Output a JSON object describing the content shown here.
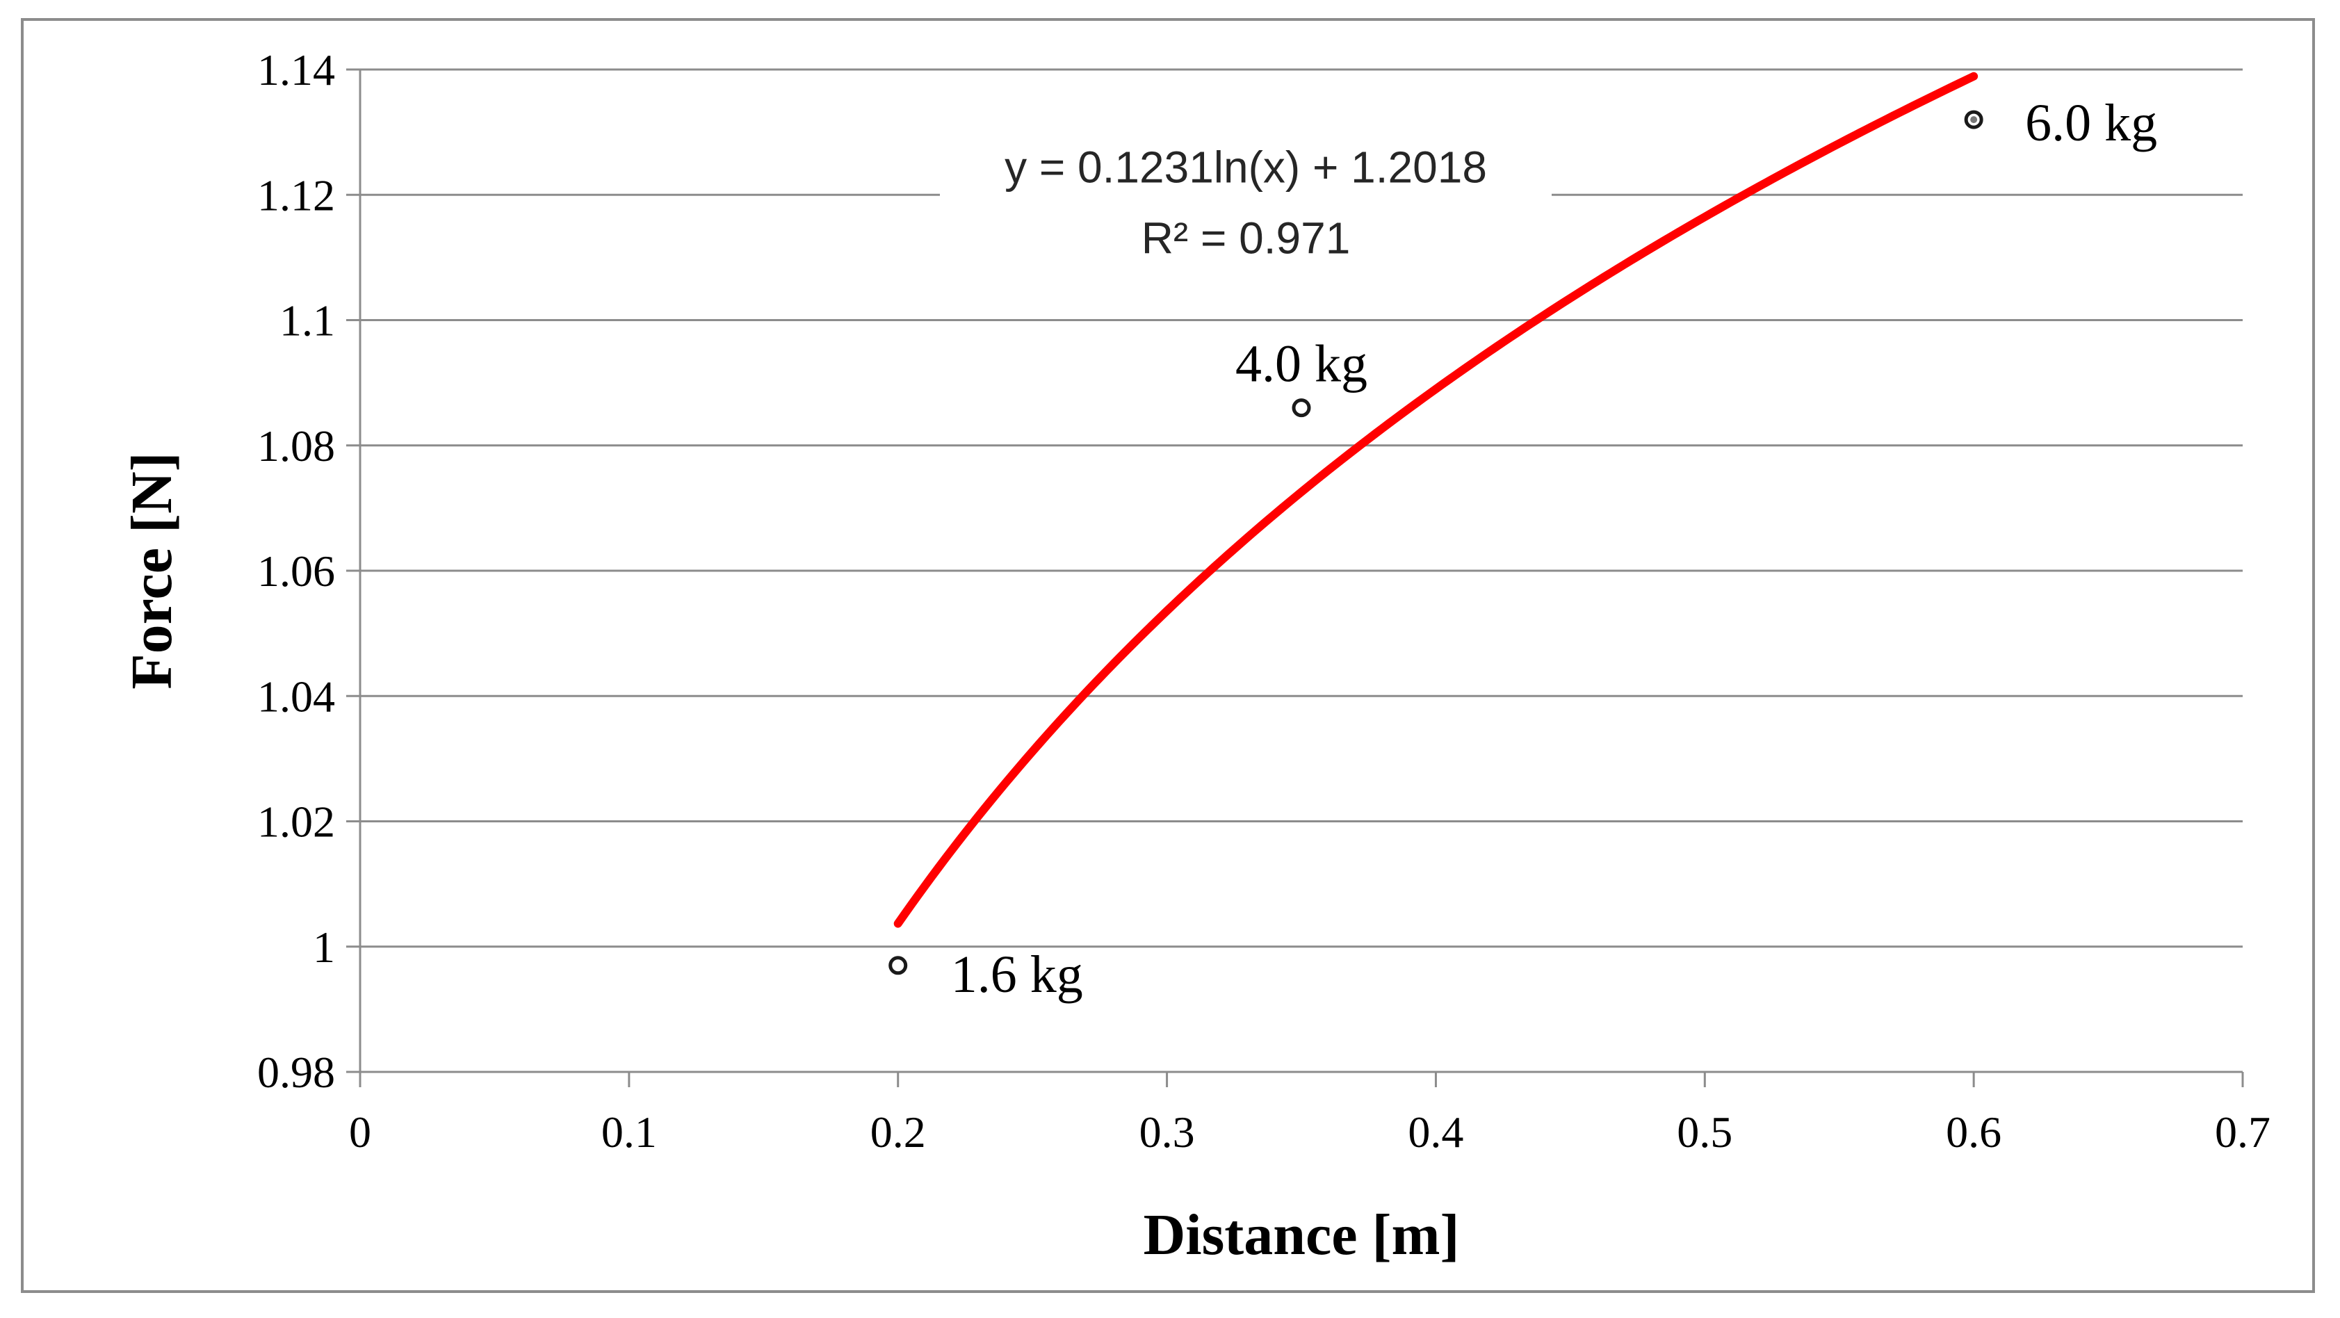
{
  "chart_data": {
    "type": "scatter",
    "title": "",
    "xlabel": "Distance [m]",
    "ylabel": "Force [N]",
    "xlim": [
      0,
      0.7
    ],
    "ylim": [
      0.98,
      1.14
    ],
    "x_ticks": [
      "0",
      "0.1",
      "0.2",
      "0.3",
      "0.4",
      "0.5",
      "0.6",
      "0.7"
    ],
    "y_ticks": [
      "0.98",
      "1",
      "1.02",
      "1.04",
      "1.06",
      "1.08",
      "1.1",
      "1.12",
      "1.14"
    ],
    "grid": "horizontal",
    "legend": "none",
    "series": [
      {
        "points": [
          {
            "x": 0.2,
            "y": 0.997,
            "label": "1.6 kg"
          },
          {
            "x": 0.35,
            "y": 1.086,
            "label": "4.0 kg"
          },
          {
            "x": 0.6,
            "y": 1.132,
            "label": "6.0 kg"
          }
        ]
      }
    ],
    "trendline": {
      "type": "logarithmic",
      "a": 0.1231,
      "b": 1.2018,
      "x_range": [
        0.2,
        0.6
      ],
      "color": "#ff0000",
      "equation": "y = 0.1231ln(x) + 1.2018",
      "r_squared": "R² = 0.971"
    }
  }
}
